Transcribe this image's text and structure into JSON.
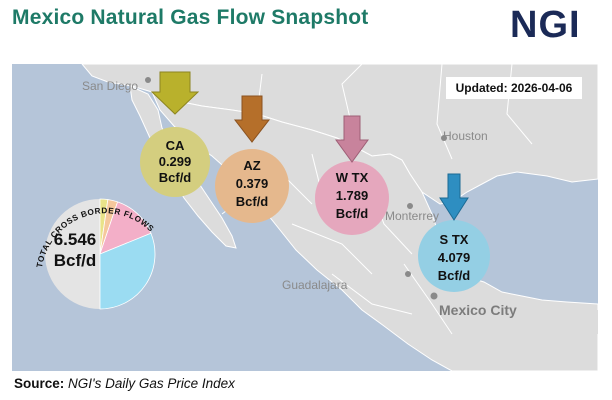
{
  "title": "Mexico Natural Gas Flow Snapshot",
  "logo_text": "NGI",
  "updated_label": "Updated: 2026-04-06",
  "source": {
    "label": "Source:",
    "value": "NGI's Daily Gas Price Index"
  },
  "cities": {
    "san_diego": "San Diego",
    "houston": "Houston",
    "monterrey": "Monterrey",
    "guadalajara": "Guadalajara",
    "mexico_city": "Mexico City"
  },
  "total": {
    "arc_label": "TOTAL CROSS BORDER FLOWS",
    "value": "6.546",
    "unit": "Bcf/d",
    "slices": [
      {
        "name": "CA",
        "value": 0.299,
        "color": "#e9e389"
      },
      {
        "name": "AZ",
        "value": 0.379,
        "color": "#f5c89c"
      },
      {
        "name": "W TX",
        "value": 1.789,
        "color": "#f3afc8"
      },
      {
        "name": "S TX",
        "value": 4.079,
        "color": "#9bdcf2"
      }
    ]
  },
  "regions": [
    {
      "name": "CA",
      "value": "0.299",
      "unit": "Bcf/d",
      "fill": "#e6e08a",
      "arrow": "#b9b12c"
    },
    {
      "name": "AZ",
      "value": "0.379",
      "unit": "Bcf/d",
      "fill": "#f4c496",
      "arrow": "#b56f2a"
    },
    {
      "name": "W TX",
      "value": "1.789",
      "unit": "Bcf/d",
      "fill": "#f4b2c9",
      "arrow": "#c8839c"
    },
    {
      "name": "S TX",
      "value": "4.079",
      "unit": "Bcf/d",
      "fill": "#9edcf3",
      "arrow": "#2e8ec1"
    }
  ],
  "colors": {
    "title": "#1e7a67",
    "logo": "#1b2a57",
    "water": "#b5c5d9",
    "land": "#dcdcdc",
    "pie_rest": "#e4e4e4"
  }
}
